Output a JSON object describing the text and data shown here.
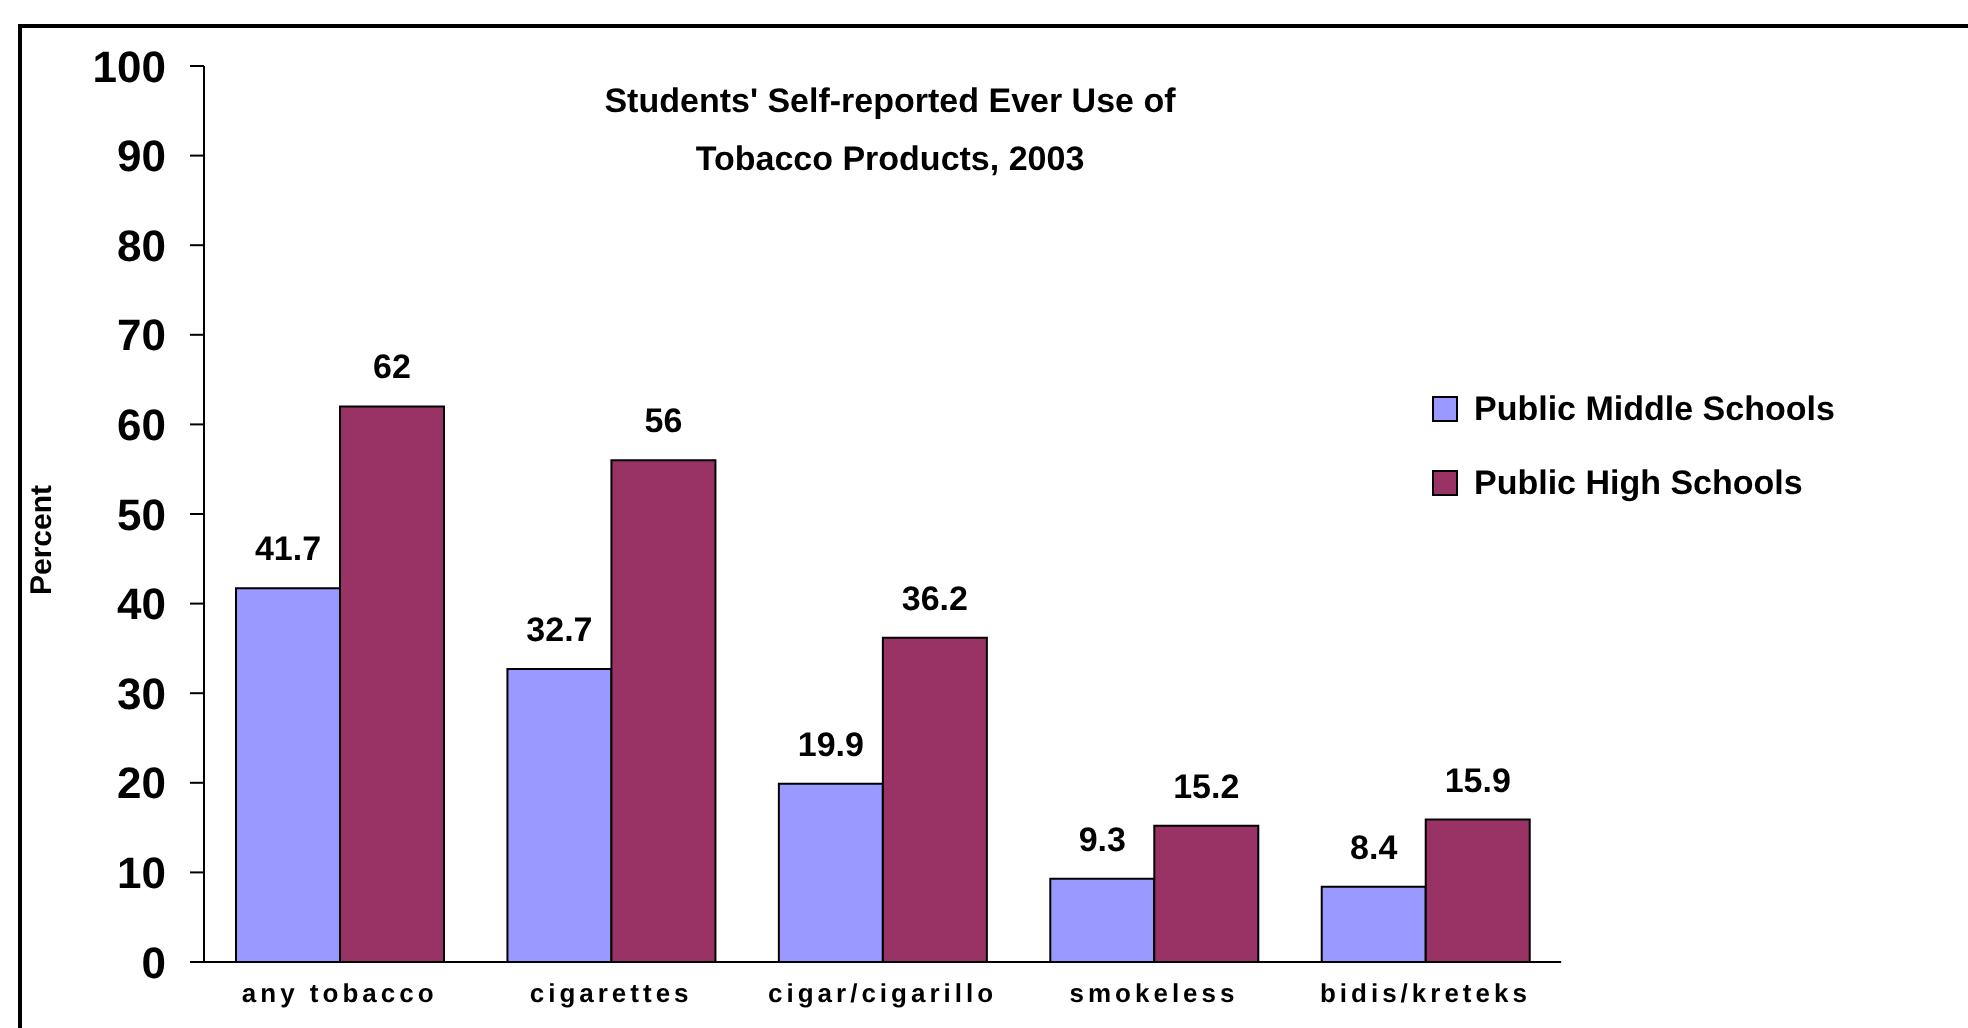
{
  "chart_data": {
    "type": "bar",
    "title": "Students' Self-reported Ever Use of Tobacco Products, 2003",
    "ylabel": "Percent",
    "categories": [
      "any tobacco",
      "cigarettes",
      "cigar/cigarillo",
      "smokeless",
      "bidis/kreteks"
    ],
    "series": [
      {
        "name": "Public Middle Schools",
        "color": "#9999ff",
        "values": [
          41.7,
          32.7,
          19.9,
          9.3,
          8.4
        ]
      },
      {
        "name": "Public High Schools",
        "color": "#993366",
        "values": [
          62,
          56,
          36.2,
          15.2,
          15.9
        ]
      }
    ],
    "ylim": [
      0,
      100
    ],
    "yticks": [
      0,
      10,
      20,
      30,
      40,
      50,
      60,
      70,
      80,
      90,
      100
    ],
    "legend": "right",
    "data_labels": true
  }
}
